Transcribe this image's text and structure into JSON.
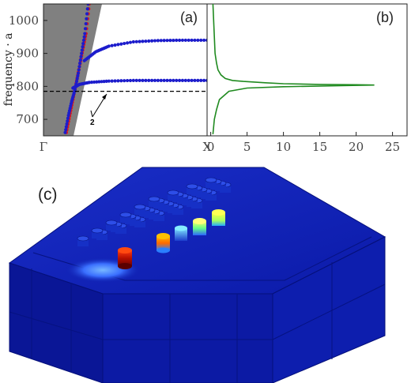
{
  "chart_data": [
    {
      "panel": "(a)",
      "type": "scatter",
      "ylabel": "frequency · a",
      "ylim": [
        650,
        1050
      ],
      "yticks": [
        700,
        800,
        900,
        1000
      ],
      "xticks": [
        "Γ",
        "X"
      ],
      "reference_line_y": 785,
      "annotation": "2",
      "series": [
        {
          "color": "#e01818",
          "x": [
            0.14,
            0.16,
            0.18,
            0.2,
            0.22,
            0.24,
            0.26,
            0.28
          ],
          "y": [
            660,
            710,
            760,
            810,
            860,
            910,
            960,
            1050
          ]
        },
        {
          "color": "#1c1ccc",
          "x": [
            0.14,
            0.16,
            0.18,
            0.2,
            0.22,
            0.24,
            0.26,
            0.28
          ],
          "y": [
            660,
            712,
            755,
            790,
            840,
            900,
            960,
            1050
          ]
        },
        {
          "color": "#1c1ccc",
          "x": [
            0.25,
            0.32,
            0.4,
            0.55,
            0.7,
            0.85,
            1.0
          ],
          "y": [
            878,
            905,
            922,
            935,
            939,
            940,
            940
          ]
        },
        {
          "color": "#1c1ccc",
          "x": [
            0.18,
            0.22,
            0.28,
            0.4,
            0.55,
            0.7,
            0.85,
            1.0
          ],
          "y": [
            795,
            806,
            812,
            816,
            818,
            818,
            818,
            818
          ]
        }
      ]
    },
    {
      "panel": "(b)",
      "type": "line",
      "xticks": [
        0,
        5,
        10,
        15,
        20,
        25
      ],
      "xlim": [
        -0.5,
        27
      ],
      "ylim": [
        650,
        1050
      ],
      "series": [
        {
          "color": "#1f8a1f",
          "x": [
            0.3,
            0.4,
            0.5,
            0.6,
            0.8,
            1.0,
            1.4,
            2.0,
            3.0,
            4.5,
            6.0,
            7.5,
            10,
            15,
            20,
            22.5,
            18,
            10,
            5,
            2.5,
            1.2,
            0.8,
            0.5,
            0.3
          ],
          "y": [
            1050,
            1000,
            950,
            900,
            870,
            850,
            835,
            824,
            818,
            815,
            813,
            811,
            808,
            806,
            805,
            804,
            802,
            799,
            795,
            785,
            760,
            730,
            700,
            655
          ]
        }
      ]
    }
  ],
  "panel_c": {
    "label": "(c)",
    "base_color": "#0c1fae",
    "hot_colors": [
      "#b01010",
      "#f07000",
      "#59c8ff",
      "#b4f55a",
      "#f9f44a"
    ]
  }
}
